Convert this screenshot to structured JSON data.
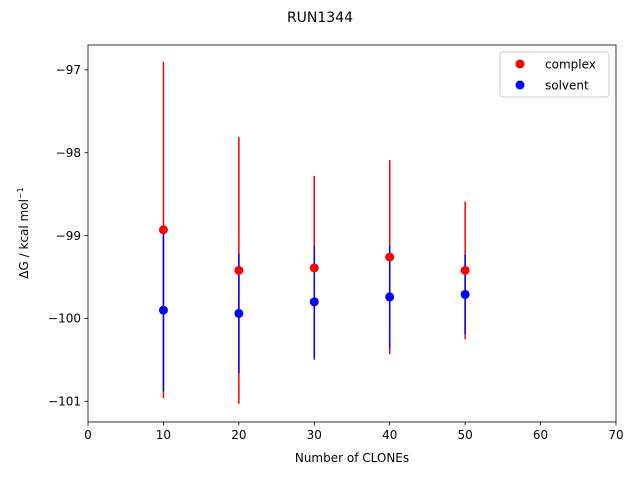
{
  "chart_data": {
    "type": "scatter",
    "title": "RUN1344",
    "xlabel": "Number of CLONEs",
    "ylabel_main": "ΔG / kcal mol",
    "ylabel_sup": "−1",
    "xlim": [
      0,
      70
    ],
    "ylim": [
      -101.25,
      -96.7
    ],
    "x_ticks": [
      0,
      10,
      20,
      30,
      40,
      50,
      60,
      70
    ],
    "x_tick_labels": [
      "0",
      "10",
      "20",
      "30",
      "40",
      "50",
      "60",
      "70"
    ],
    "y_ticks": [
      -101,
      -100,
      -99,
      -98,
      -97
    ],
    "y_tick_labels": [
      "−101",
      "−100",
      "−99",
      "−98",
      "−97"
    ],
    "grid": false,
    "legend_position": "top-right",
    "series": [
      {
        "name": "complex",
        "color": "#ff0000",
        "points": [
          {
            "x": 10,
            "y": -98.93,
            "err": 2.03
          },
          {
            "x": 20,
            "y": -99.42,
            "err": 1.61
          },
          {
            "x": 30,
            "y": -99.39,
            "err": 1.11
          },
          {
            "x": 40,
            "y": -99.26,
            "err": 1.17
          },
          {
            "x": 50,
            "y": -99.42,
            "err": 0.83
          }
        ]
      },
      {
        "name": "solvent",
        "color": "#0000ff",
        "points": [
          {
            "x": 10,
            "y": -99.9,
            "err": 0.98
          },
          {
            "x": 20,
            "y": -99.94,
            "err": 0.72
          },
          {
            "x": 30,
            "y": -99.8,
            "err": 0.68
          },
          {
            "x": 40,
            "y": -99.74,
            "err": 0.62
          },
          {
            "x": 50,
            "y": -99.71,
            "err": 0.48
          }
        ]
      }
    ]
  }
}
